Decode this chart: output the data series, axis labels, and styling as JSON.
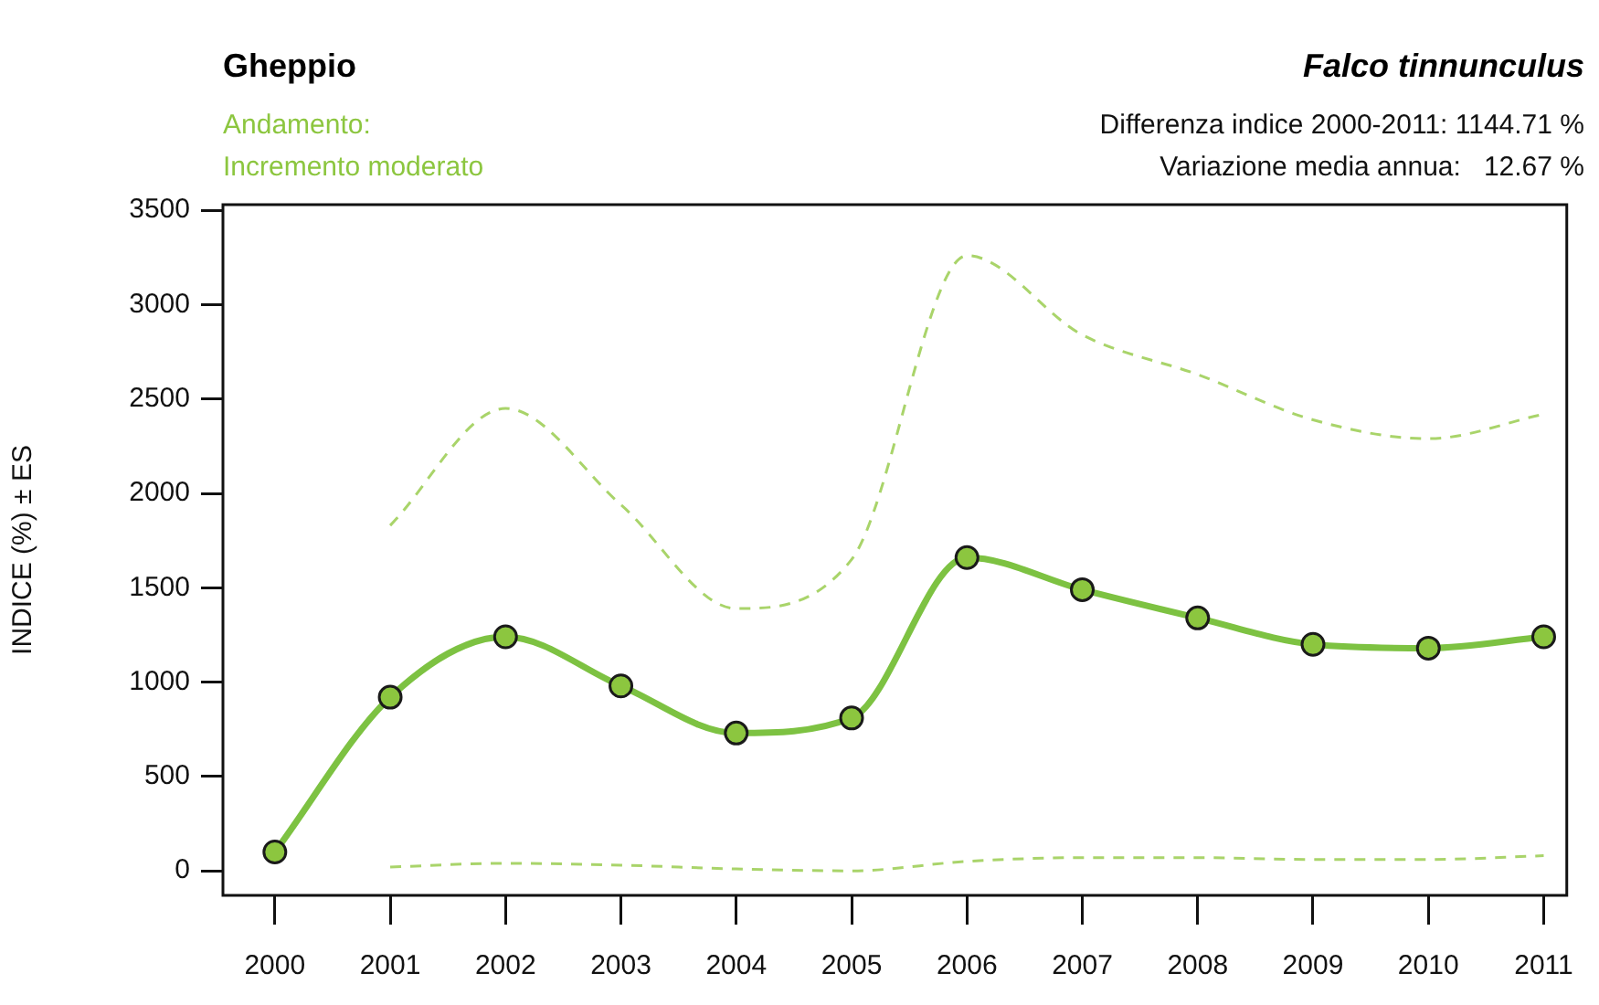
{
  "chart_data": {
    "type": "line",
    "title": "Gheppio",
    "subtitle": "Falco tinnunculus",
    "ylabel": "INDICE (%) ± ES",
    "annotations": [
      "Andamento:",
      "Incremento moderato",
      "Differenza indice 2000-2011: 1144.71 %",
      "Variazione media annua:   12.67 %"
    ],
    "x": [
      2000,
      2001,
      2002,
      2003,
      2004,
      2005,
      2006,
      2007,
      2008,
      2009,
      2010,
      2011
    ],
    "series": [
      {
        "color": "#7dc242",
        "values": [
          100,
          920,
          1240,
          980,
          730,
          810,
          1660,
          1490,
          1340,
          1200,
          1180,
          1240
        ]
      },
      {
        "color": "#a9d46a",
        "line_style": "dashed",
        "marker": "none",
        "values": [
          null,
          1830,
          2450,
          1940,
          1390,
          1650,
          3260,
          2840,
          2630,
          2390,
          2290,
          2420
        ]
      },
      {
        "color": "#a9d46a",
        "line_style": "dashed",
        "marker": "none",
        "values": [
          null,
          20,
          40,
          30,
          10,
          0,
          50,
          70,
          70,
          60,
          60,
          80
        ]
      }
    ],
    "xlim": [
      1999.55,
      2011.2
    ],
    "xticks": [
      2000,
      2001,
      2002,
      2003,
      2004,
      2005,
      2006,
      2007,
      2008,
      2009,
      2010,
      2011
    ],
    "ylim": [
      -130,
      3530
    ],
    "yticks": [
      0,
      500,
      1000,
      1500,
      2000,
      2500,
      3000,
      3500
    ],
    "grid": false,
    "legend": false,
    "marker": "circle",
    "line_style": "solid"
  }
}
